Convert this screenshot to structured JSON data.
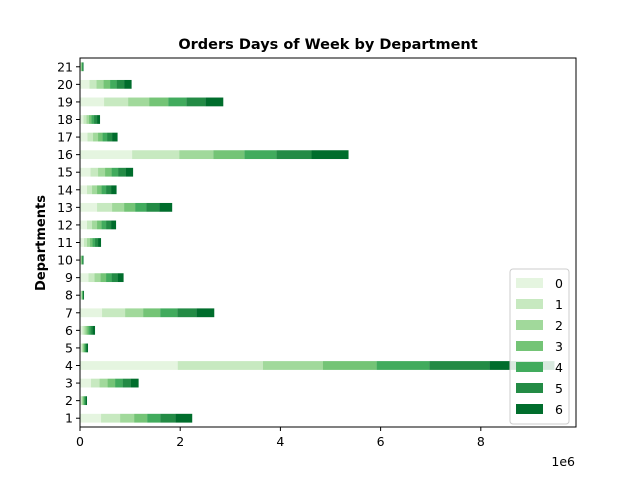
{
  "chart_data": {
    "type": "bar",
    "orientation": "horizontal",
    "stacked": true,
    "title": "Orders Days of Week by Department",
    "xlabel": "",
    "ylabel": "Departments",
    "x_multiplier_label": "1e6",
    "xlim": [
      0,
      9.9
    ],
    "x_ticks": [
      0,
      2,
      4,
      6,
      8
    ],
    "x_tick_labels": [
      "0",
      "2",
      "4",
      "6",
      "8"
    ],
    "categories": [
      "1",
      "2",
      "3",
      "4",
      "5",
      "6",
      "7",
      "8",
      "9",
      "10",
      "11",
      "12",
      "13",
      "14",
      "15",
      "16",
      "17",
      "18",
      "19",
      "20",
      "21"
    ],
    "legend_position": "lower-right",
    "series": [
      {
        "name": "0",
        "color": "#e5f5e0",
        "values": [
          0.42,
          0.02,
          0.22,
          1.95,
          0.03,
          0.05,
          0.44,
          0.02,
          0.17,
          0.01,
          0.08,
          0.14,
          0.34,
          0.14,
          0.21,
          1.04,
          0.15,
          0.07,
          0.48,
          0.19,
          0.01
        ]
      },
      {
        "name": "1",
        "color": "#c7e9c0",
        "values": [
          0.38,
          0.02,
          0.17,
          1.7,
          0.02,
          0.04,
          0.46,
          0.01,
          0.12,
          0.01,
          0.06,
          0.1,
          0.3,
          0.1,
          0.15,
          0.94,
          0.11,
          0.06,
          0.48,
          0.14,
          0.01
        ]
      },
      {
        "name": "2",
        "color": "#a1d99b",
        "values": [
          0.28,
          0.02,
          0.16,
          1.2,
          0.02,
          0.04,
          0.36,
          0.01,
          0.12,
          0.01,
          0.06,
          0.1,
          0.24,
          0.1,
          0.14,
          0.68,
          0.1,
          0.05,
          0.42,
          0.14,
          0.01
        ]
      },
      {
        "name": "3",
        "color": "#74c476",
        "values": [
          0.26,
          0.02,
          0.15,
          1.07,
          0.02,
          0.04,
          0.34,
          0.01,
          0.11,
          0.01,
          0.05,
          0.09,
          0.22,
          0.09,
          0.13,
          0.62,
          0.09,
          0.05,
          0.38,
          0.13,
          0.01
        ]
      },
      {
        "name": "4",
        "color": "#41ab5d",
        "values": [
          0.26,
          0.02,
          0.15,
          1.05,
          0.02,
          0.04,
          0.34,
          0.01,
          0.11,
          0.01,
          0.05,
          0.09,
          0.22,
          0.09,
          0.13,
          0.64,
          0.09,
          0.05,
          0.36,
          0.13,
          0.01
        ]
      },
      {
        "name": "5",
        "color": "#238b45",
        "values": [
          0.3,
          0.02,
          0.16,
          1.2,
          0.02,
          0.04,
          0.38,
          0.01,
          0.12,
          0.01,
          0.06,
          0.1,
          0.26,
          0.1,
          0.15,
          0.7,
          0.1,
          0.06,
          0.38,
          0.15,
          0.01
        ]
      },
      {
        "name": "6",
        "color": "#006d2c",
        "values": [
          0.34,
          0.02,
          0.16,
          1.3,
          0.03,
          0.05,
          0.36,
          0.01,
          0.12,
          0.01,
          0.06,
          0.1,
          0.26,
          0.11,
          0.15,
          0.74,
          0.11,
          0.06,
          0.36,
          0.15,
          0.01
        ]
      }
    ]
  }
}
